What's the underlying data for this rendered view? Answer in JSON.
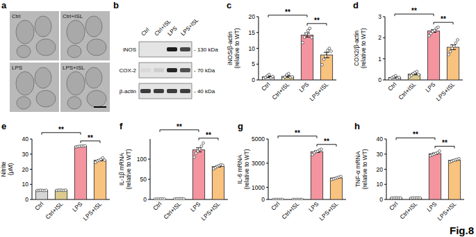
{
  "figure_label": "Fig.8",
  "panel_letters": [
    "a",
    "b",
    "c",
    "d",
    "e",
    "f",
    "g",
    "h"
  ],
  "panel_a": {
    "labels": [
      "Ctrl",
      "Ctrl+ISL",
      "LPS",
      "LPS+ISL"
    ]
  },
  "panel_b": {
    "lanes": [
      "Ctrl",
      "Ctrl+ISL",
      "LPS",
      "LPS+ISL"
    ],
    "rows": [
      {
        "label": "iNOS",
        "size": "- 130 kDa",
        "intensity": [
          0,
          0,
          0.95,
          0.75
        ]
      },
      {
        "label": "COX-2",
        "size": "- 70 kDa",
        "intensity": [
          0.05,
          0.1,
          0.9,
          0.7
        ]
      },
      {
        "label": "β-actin",
        "size": "- 40 kDa",
        "intensity": [
          0.8,
          0.8,
          0.8,
          0.8
        ]
      }
    ]
  },
  "chart_data": [
    {
      "type": "bar",
      "ylabel": "iNOS/β-actin (relative to WT)",
      "categories": [
        "Ctrl",
        "Ctrl+ISL",
        "LPS",
        "LPS+ISL"
      ],
      "values": [
        1.0,
        1.1,
        14.2,
        7.9
      ],
      "errors": [
        0.2,
        0.25,
        0.65,
        0.85
      ],
      "points": [
        [
          0.5,
          0.8,
          1.3,
          1.7,
          0.6,
          1.1
        ],
        [
          0.4,
          0.9,
          1.6,
          2.0,
          0.8,
          1.0
        ],
        [
          11.8,
          13.5,
          14.6,
          15.6,
          16.3,
          13.4
        ],
        [
          4.8,
          6.5,
          7.5,
          9.3,
          10.0,
          9.1
        ]
      ],
      "colors": [
        "#d6d6d6",
        "#dccb8e",
        "#f3949f",
        "#f8c27f"
      ],
      "ylim": [
        0,
        20
      ],
      "yticks": [
        0,
        5,
        10,
        15,
        20
      ],
      "annotations": [
        {
          "between": [
            "Ctrl",
            "LPS"
          ],
          "label": "**"
        },
        {
          "between": [
            "LPS",
            "LPS+ISL"
          ],
          "label": "**"
        }
      ]
    },
    {
      "type": "bar",
      "ylabel": "COX2/β-actin (relative to WT)",
      "categories": [
        "Ctrl",
        "Ctrl+ISL",
        "LPS",
        "LPS+ISL"
      ],
      "values": [
        0.12,
        0.28,
        2.32,
        1.55
      ],
      "errors": [
        0.03,
        0.04,
        0.06,
        0.11
      ],
      "points": [
        [
          0.05,
          0.1,
          0.15,
          0.2,
          0.08,
          0.12
        ],
        [
          0.15,
          0.22,
          0.3,
          0.35,
          0.4,
          0.25
        ],
        [
          2.1,
          2.2,
          2.3,
          2.35,
          2.45,
          2.5
        ],
        [
          1.2,
          1.35,
          1.5,
          1.6,
          1.75,
          1.9
        ]
      ],
      "colors": [
        "#d6d6d6",
        "#dccb8e",
        "#f3949f",
        "#f8c27f"
      ],
      "ylim": [
        0,
        3
      ],
      "yticks": [
        0,
        1,
        2,
        3
      ],
      "annotations": [
        {
          "between": [
            "Ctrl",
            "LPS"
          ],
          "label": "**"
        },
        {
          "between": [
            "LPS",
            "LPS+ISL"
          ],
          "label": "**"
        }
      ]
    },
    {
      "type": "bar",
      "ylabel": "Nitrite (μM)",
      "categories": [
        "Ctrl",
        "Ctrl+ISL",
        "LPS",
        "LPS+ISL"
      ],
      "values": [
        6.0,
        6.1,
        35.2,
        26.0
      ],
      "errors": [
        0.05,
        0.05,
        0.1,
        0.4
      ],
      "points": [
        [
          5.9,
          6.0,
          6.1,
          6.0,
          5.9,
          6.1
        ],
        [
          6.0,
          6.1,
          6.2,
          6.1,
          6.0,
          6.2
        ],
        [
          34.8,
          35.0,
          35.2,
          35.4,
          35.3,
          35.5
        ],
        [
          24.5,
          25.5,
          26.0,
          26.5,
          27.5,
          26.0
        ]
      ],
      "colors": [
        "#d6d6d6",
        "#dccb8e",
        "#f3949f",
        "#f8c27f"
      ],
      "ylim": [
        0,
        40
      ],
      "yticks": [
        0,
        10,
        20,
        30,
        40
      ],
      "annotations": [
        {
          "between": [
            "Ctrl",
            "LPS"
          ],
          "label": "**"
        },
        {
          "between": [
            "LPS",
            "LPS+ISL"
          ],
          "label": "**"
        }
      ]
    },
    {
      "type": "bar",
      "ylabel": "IL-1β mRNA (relative to WT)",
      "categories": [
        "Ctrl",
        "Ctrl+ISL",
        "LPS",
        "LPS+ISL"
      ],
      "values": [
        1.0,
        1.4,
        123,
        82
      ],
      "errors": [
        0.06,
        0.06,
        5.0,
        1.5
      ],
      "points": [
        [
          0.8,
          0.9,
          1.0,
          1.1,
          1.2,
          1.0
        ],
        [
          1.2,
          1.3,
          1.4,
          1.5,
          1.6,
          1.4
        ],
        [
          105,
          115,
          120,
          125,
          132,
          140
        ],
        [
          76,
          79,
          82,
          84,
          86,
          85
        ]
      ],
      "colors": [
        "#d6d6d6",
        "#dccb8e",
        "#f3949f",
        "#f8c27f"
      ],
      "ylim": [
        0,
        150
      ],
      "yticks": [
        0,
        50,
        100
      ],
      "annotations": [
        {
          "between": [
            "Ctrl",
            "LPS"
          ],
          "label": "**"
        },
        {
          "between": [
            "LPS",
            "LPS+ISL"
          ],
          "label": "**"
        }
      ]
    },
    {
      "type": "bar",
      "ylabel": "IL-6 mRNA (relative to WT)",
      "categories": [
        "Ctrl",
        "Ctrl+ISL",
        "LPS",
        "LPS+ISL"
      ],
      "values": [
        1.0,
        1.8,
        3950,
        1780
      ],
      "errors": [
        0.06,
        0.08,
        70,
        35
      ],
      "points": [
        [
          0.8,
          0.9,
          1.0,
          1.1,
          1.2,
          1.0
        ],
        [
          1.5,
          1.7,
          1.8,
          1.9,
          2.0,
          1.9
        ],
        [
          3700,
          3850,
          3950,
          4000,
          4100,
          4150
        ],
        [
          1650,
          1700,
          1750,
          1800,
          1850,
          1900
        ]
      ],
      "colors": [
        "#d6d6d6",
        "#dccb8e",
        "#f3949f",
        "#f8c27f"
      ],
      "ylim": [
        0,
        5000
      ],
      "yticks": [
        0,
        1000,
        3000,
        5000
      ],
      "annotations": [
        {
          "between": [
            "Ctrl",
            "LPS"
          ],
          "label": "**"
        },
        {
          "between": [
            "LPS",
            "LPS+ISL"
          ],
          "label": "**"
        }
      ]
    },
    {
      "type": "bar",
      "ylabel": "TNF-α mRNA (relative to WT)",
      "categories": [
        "Ctrl",
        "Ctrl+ISL",
        "LPS",
        "LPS+ISL"
      ],
      "values": [
        1.0,
        1.0,
        30.3,
        25.9
      ],
      "errors": [
        0.04,
        0.04,
        0.45,
        0.35
      ],
      "points": [
        [
          0.9,
          1.0,
          1.0,
          1.1,
          1.0,
          1.0
        ],
        [
          0.9,
          1.0,
          1.0,
          1.0,
          1.1,
          1.0
        ],
        [
          29,
          29.5,
          30,
          30.5,
          31,
          32
        ],
        [
          24.8,
          25.3,
          25.8,
          26.2,
          26.5,
          27
        ]
      ],
      "colors": [
        "#d6d6d6",
        "#dccb8e",
        "#f3949f",
        "#f8c27f"
      ],
      "ylim": [
        0,
        40
      ],
      "yticks": [
        0,
        10,
        20,
        30,
        40
      ],
      "annotations": [
        {
          "between": [
            "Ctrl",
            "LPS"
          ],
          "label": "**"
        },
        {
          "between": [
            "LPS",
            "LPS+ISL"
          ],
          "label": "**"
        }
      ]
    }
  ]
}
